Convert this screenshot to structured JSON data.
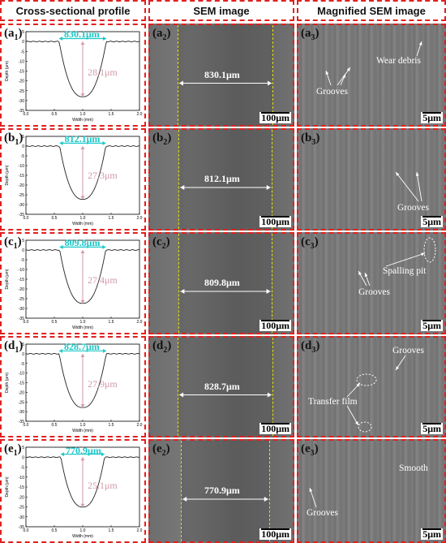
{
  "headers": {
    "col1": "Cross-sectional profile",
    "col2": "SEM image",
    "col3": "Magnified SEM image"
  },
  "axes": {
    "ylabel": "Depth (μm)",
    "xlabel": "Width (mm)",
    "y_ticks": [
      "5",
      "0",
      "-5",
      "-10",
      "-15",
      "-20",
      "-25",
      "-30",
      "-35"
    ],
    "x_ticks": [
      "0.0",
      "0.5",
      "1.0",
      "1.5",
      "2.0"
    ]
  },
  "rows": [
    {
      "id": "a",
      "profile_label": "a",
      "profile_sub": "1",
      "sem_label": "a",
      "sem_sub": "2",
      "mag_label": "a",
      "mag_sub": "3",
      "width": "830.1μm",
      "depth": "28.1μm",
      "sem_scale": "100μm",
      "mag_scale": "5μm",
      "annotations": [
        "Wear debris",
        "Grooves"
      ]
    },
    {
      "id": "b",
      "profile_label": "b",
      "profile_sub": "1",
      "sem_label": "b",
      "sem_sub": "2",
      "mag_label": "b",
      "mag_sub": "3",
      "width": "812.1μm",
      "depth": "27.3μm",
      "sem_scale": "100μm",
      "mag_scale": "5μm",
      "annotations": [
        "Grooves"
      ]
    },
    {
      "id": "c",
      "profile_label": "c",
      "profile_sub": "1",
      "sem_label": "c",
      "sem_sub": "2",
      "mag_label": "c",
      "mag_sub": "3",
      "width": "809.8μm",
      "depth": "27.4μm",
      "sem_scale": "100μm",
      "mag_scale": "5μm",
      "annotations": [
        "Spalling pit",
        "Grooves"
      ]
    },
    {
      "id": "d",
      "profile_label": "d",
      "profile_sub": "1",
      "sem_label": "d",
      "sem_sub": "2",
      "mag_label": "d",
      "mag_sub": "3",
      "width": "828.7μm",
      "depth": "27.9μm",
      "sem_scale": "100μm",
      "mag_scale": "5μm",
      "annotations": [
        "Grooves",
        "Transfer film"
      ]
    },
    {
      "id": "e",
      "profile_label": "e",
      "profile_sub": "1",
      "sem_label": "e",
      "sem_sub": "2",
      "mag_label": "e",
      "mag_sub": "3",
      "width": "770.9μm",
      "depth": "25.1μm",
      "sem_scale": "100μm",
      "mag_scale": "5μm",
      "annotations": [
        "Smooth",
        "Grooves"
      ]
    }
  ],
  "colors": {
    "frame": "#e02020",
    "width_annotation": "#19c8c8",
    "depth_annotation": "#d39aa8",
    "track_edge": "#e8e000"
  }
}
